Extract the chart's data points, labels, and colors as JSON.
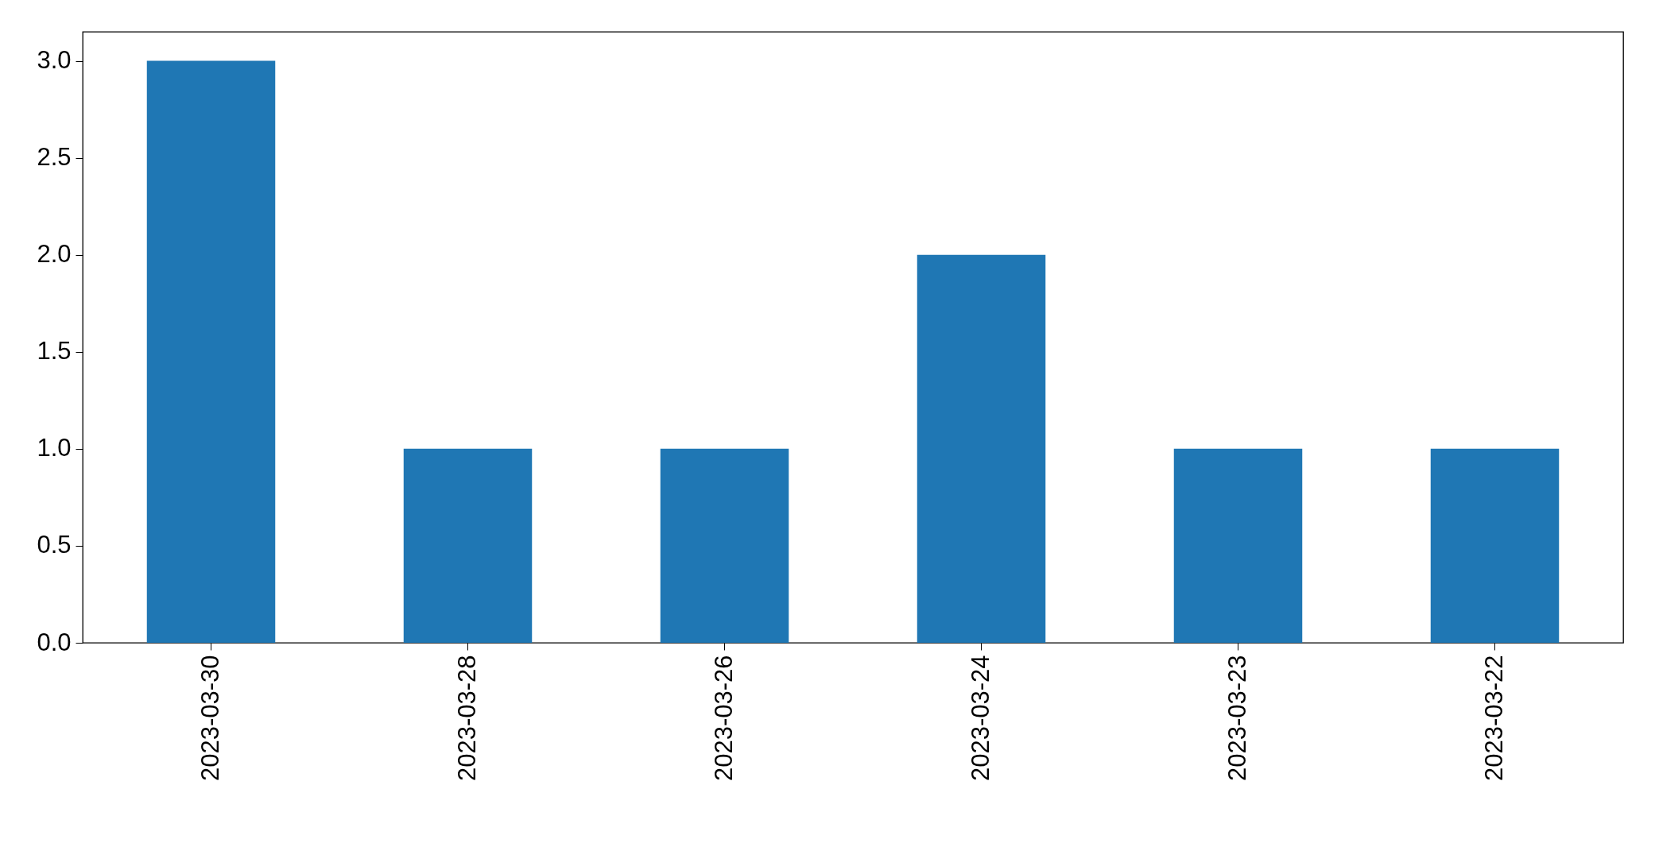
{
  "chart_data": {
    "type": "bar",
    "categories": [
      "2023-03-30",
      "2023-03-28",
      "2023-03-26",
      "2023-03-24",
      "2023-03-23",
      "2023-03-22"
    ],
    "values": [
      3,
      1,
      1,
      2,
      1,
      1
    ],
    "color": "#1f77b4",
    "ylim": [
      0,
      3.15
    ],
    "yticks": [
      {
        "value": 0,
        "label": "0.0"
      },
      {
        "value": 0.5,
        "label": "0.5"
      },
      {
        "value": 1,
        "label": "1.0"
      },
      {
        "value": 1.5,
        "label": "1.5"
      },
      {
        "value": 2,
        "label": "2.0"
      },
      {
        "value": 2.5,
        "label": "2.5"
      },
      {
        "value": 3,
        "label": "3.0"
      }
    ],
    "grid": false
  }
}
